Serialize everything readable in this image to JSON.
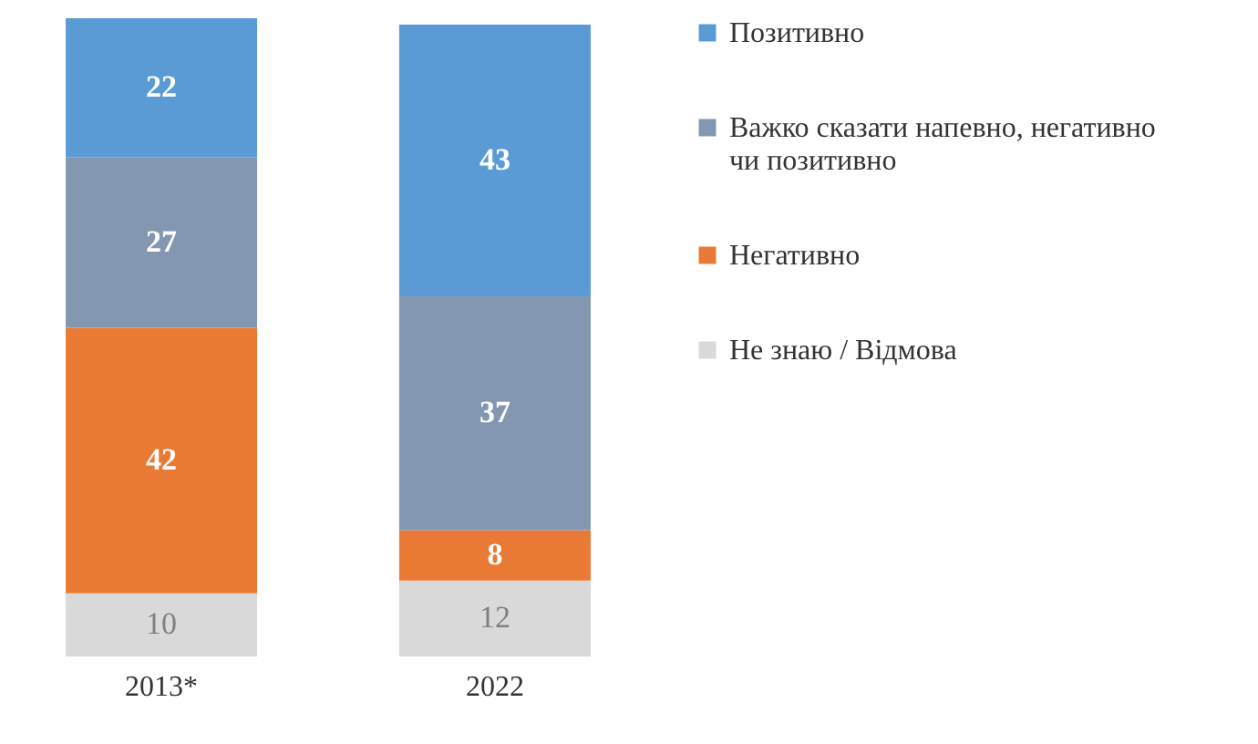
{
  "chart_data": {
    "type": "bar",
    "stacked": true,
    "categories": [
      "2013*",
      "2022"
    ],
    "series": [
      {
        "name": "Не знаю / Відмова",
        "color": "#d9d9d9",
        "values": [
          10,
          12
        ]
      },
      {
        "name": "Негативно",
        "color": "#e97a35",
        "values": [
          42,
          8
        ]
      },
      {
        "name": "Важко сказати напевно, негативно чи позитивно",
        "color": "#8497b0",
        "values": [
          27,
          37
        ]
      },
      {
        "name": "Позитивно",
        "color": "#5b9bd5",
        "values": [
          22,
          43
        ]
      }
    ],
    "data_labels": true,
    "legend": "right",
    "grid": false
  }
}
